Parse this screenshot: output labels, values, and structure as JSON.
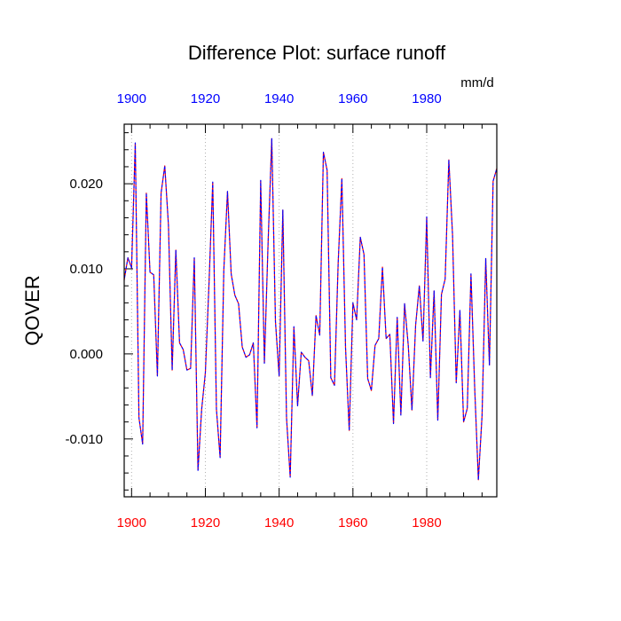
{
  "chart_data": {
    "type": "line",
    "title": "Difference Plot: surface runoff",
    "units": "mm/d",
    "ylabel": "QOVER",
    "xlabel": "",
    "xlim": [
      1898,
      1999
    ],
    "ylim": [
      -0.0168,
      0.027
    ],
    "x_ticks": [
      1900,
      1920,
      1940,
      1960,
      1980
    ],
    "y_ticks": [
      -0.01,
      0.0,
      0.01,
      0.02
    ],
    "y_tick_labels": [
      "-0.010",
      "0.000",
      "0.010",
      "0.020"
    ],
    "grid": "vertical dotted at major x ticks",
    "colors": {
      "bottom_tick_labels": "#ff0000",
      "top_tick_labels": "#0000ff",
      "series_a": "#ff0000",
      "series_b": "#0000ff"
    },
    "series": [
      {
        "x": [
          1898,
          1899,
          1900,
          1901,
          1902,
          1903,
          1904,
          1905,
          1906,
          1907,
          1908,
          1909,
          1910,
          1911,
          1912,
          1913,
          1914,
          1915,
          1916,
          1917,
          1918,
          1919,
          1920,
          1921,
          1922,
          1923,
          1924,
          1925,
          1926,
          1927,
          1928,
          1929,
          1930,
          1931,
          1932,
          1933,
          1934,
          1935,
          1936,
          1937,
          1938,
          1939,
          1940,
          1941,
          1942,
          1943,
          1944,
          1945,
          1946,
          1947,
          1948,
          1949,
          1950,
          1951,
          1952,
          1953,
          1954,
          1955,
          1956,
          1957,
          1958,
          1959,
          1960,
          1961,
          1962,
          1963,
          1964,
          1965,
          1966,
          1967,
          1968,
          1969,
          1970,
          1971,
          1972,
          1973,
          1974,
          1975,
          1976,
          1977,
          1978,
          1979,
          1980,
          1981,
          1982,
          1983,
          1984,
          1985,
          1986,
          1987,
          1988,
          1989,
          1990,
          1991,
          1992,
          1993,
          1994,
          1995,
          1996,
          1997,
          1998,
          1999
        ],
        "values": [
          0.0087,
          0.0113,
          0.0101,
          0.0248,
          -0.0075,
          -0.0106,
          0.0189,
          0.0096,
          0.0093,
          -0.0026,
          0.0189,
          0.0221,
          0.0151,
          -0.0019,
          0.0122,
          0.0013,
          0.0005,
          -0.0019,
          -0.0017,
          0.0113,
          -0.0137,
          -0.0065,
          -0.0022,
          0.0084,
          0.0202,
          -0.0065,
          -0.0122,
          0.0098,
          0.0191,
          0.0094,
          0.0069,
          0.0059,
          0.0008,
          -0.0004,
          -0.0001,
          0.0013,
          -0.0087,
          0.0204,
          -0.0011,
          0.013,
          0.0253,
          0.0038,
          -0.0026,
          0.0169,
          -0.0075,
          -0.0145,
          0.0032,
          -0.0061,
          0.0002,
          -0.0004,
          -0.0008,
          -0.0049,
          0.0045,
          0.0022,
          0.0237,
          0.0216,
          -0.0028,
          -0.0037,
          0.0107,
          0.0206,
          0.0007,
          -0.009,
          0.006,
          0.004,
          0.0137,
          0.0117,
          -0.0029,
          -0.0043,
          0.001,
          0.0018,
          0.0102,
          0.0018,
          0.0023,
          -0.0082,
          0.0043,
          -0.0072,
          0.0059,
          0.001,
          -0.0066,
          0.0034,
          0.008,
          0.0015,
          0.0161,
          -0.0028,
          0.0074,
          -0.0078,
          0.007,
          0.0088,
          0.0228,
          0.014,
          -0.0034,
          0.0051,
          -0.008,
          -0.0064,
          0.0094,
          -0.0039,
          -0.0148,
          -0.0073,
          0.0112,
          -0.0013,
          0.0203,
          0.0218
        ]
      }
    ]
  }
}
